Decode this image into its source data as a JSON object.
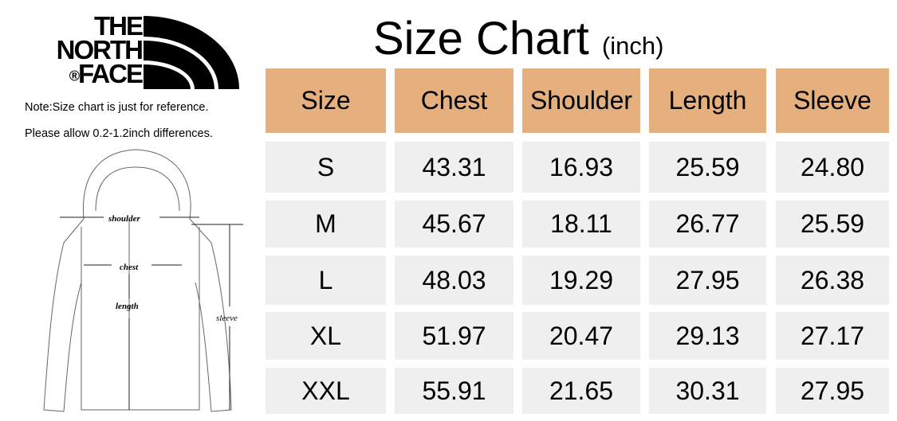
{
  "brand": {
    "logo_text": "THE NORTH FACE",
    "registered": "®"
  },
  "notes": [
    "Note:Size chart is just for reference.",
    "Please allow 0.2-1.2inch differences."
  ],
  "title": {
    "main": "Size Chart",
    "unit": "(inch)"
  },
  "diagram_labels": {
    "shoulder": "shoulder",
    "chest": "chest",
    "length": "length",
    "sleeve": "sleeve"
  },
  "colors": {
    "header_bg": "#e6b07e",
    "cell_bg": "#efefef"
  },
  "table": {
    "headers": [
      "Size",
      "Chest",
      "Shoulder",
      "Length",
      "Sleeve"
    ],
    "rows": [
      [
        "S",
        "43.31",
        "16.93",
        "25.59",
        "24.80"
      ],
      [
        "M",
        "45.67",
        "18.11",
        "26.77",
        "25.59"
      ],
      [
        "L",
        "48.03",
        "19.29",
        "27.95",
        "26.38"
      ],
      [
        "XL",
        "51.97",
        "20.47",
        "29.13",
        "27.17"
      ],
      [
        "XXL",
        "55.91",
        "21.65",
        "30.31",
        "27.95"
      ]
    ]
  }
}
